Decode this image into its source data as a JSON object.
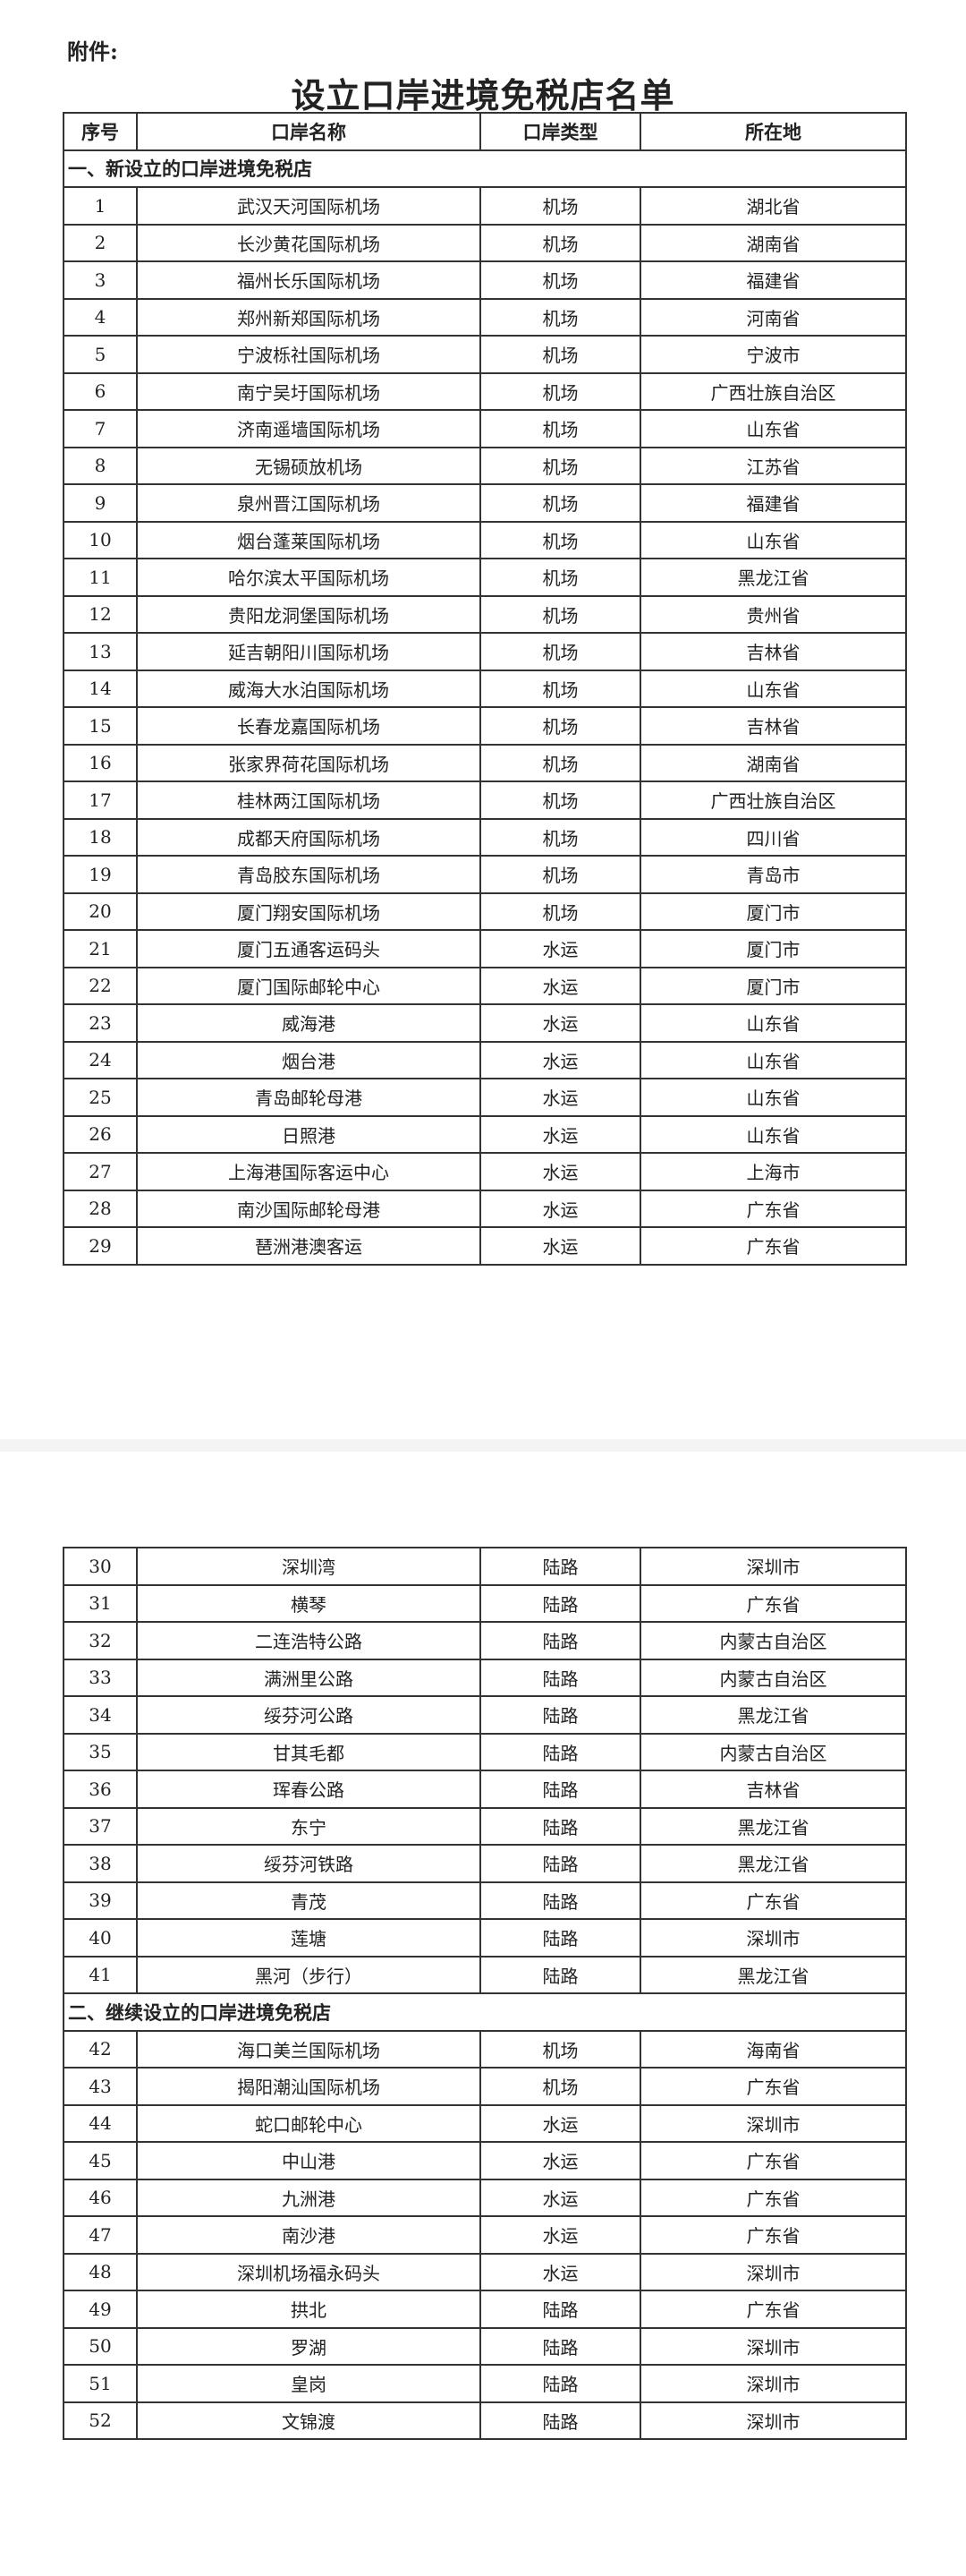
{
  "attachment_label": "附件:",
  "title": "设立口岸进境免税店名单",
  "headers": [
    "序号",
    "口岸名称",
    "口岸类型",
    "所在地"
  ],
  "sections": [
    {
      "label": "一、新设立的口岸进境免税店",
      "rows": [
        [
          "1",
          "武汉天河国际机场",
          "机场",
          "湖北省"
        ],
        [
          "2",
          "长沙黄花国际机场",
          "机场",
          "湖南省"
        ],
        [
          "3",
          "福州长乐国际机场",
          "机场",
          "福建省"
        ],
        [
          "4",
          "郑州新郑国际机场",
          "机场",
          "河南省"
        ],
        [
          "5",
          "宁波栎社国际机场",
          "机场",
          "宁波市"
        ],
        [
          "6",
          "南宁吴圩国际机场",
          "机场",
          "广西壮族自治区"
        ],
        [
          "7",
          "济南遥墙国际机场",
          "机场",
          "山东省"
        ],
        [
          "8",
          "无锡硕放机场",
          "机场",
          "江苏省"
        ],
        [
          "9",
          "泉州晋江国际机场",
          "机场",
          "福建省"
        ],
        [
          "10",
          "烟台蓬莱国际机场",
          "机场",
          "山东省"
        ],
        [
          "11",
          "哈尔滨太平国际机场",
          "机场",
          "黑龙江省"
        ],
        [
          "12",
          "贵阳龙洞堡国际机场",
          "机场",
          "贵州省"
        ],
        [
          "13",
          "延吉朝阳川国际机场",
          "机场",
          "吉林省"
        ],
        [
          "14",
          "威海大水泊国际机场",
          "机场",
          "山东省"
        ],
        [
          "15",
          "长春龙嘉国际机场",
          "机场",
          "吉林省"
        ],
        [
          "16",
          "张家界荷花国际机场",
          "机场",
          "湖南省"
        ],
        [
          "17",
          "桂林两江国际机场",
          "机场",
          "广西壮族自治区"
        ],
        [
          "18",
          "成都天府国际机场",
          "机场",
          "四川省"
        ],
        [
          "19",
          "青岛胶东国际机场",
          "机场",
          "青岛市"
        ],
        [
          "20",
          "厦门翔安国际机场",
          "机场",
          "厦门市"
        ],
        [
          "21",
          "厦门五通客运码头",
          "水运",
          "厦门市"
        ],
        [
          "22",
          "厦门国际邮轮中心",
          "水运",
          "厦门市"
        ],
        [
          "23",
          "威海港",
          "水运",
          "山东省"
        ],
        [
          "24",
          "烟台港",
          "水运",
          "山东省"
        ],
        [
          "25",
          "青岛邮轮母港",
          "水运",
          "山东省"
        ],
        [
          "26",
          "日照港",
          "水运",
          "山东省"
        ],
        [
          "27",
          "上海港国际客运中心",
          "水运",
          "上海市"
        ],
        [
          "28",
          "南沙国际邮轮母港",
          "水运",
          "广东省"
        ],
        [
          "29",
          "琶洲港澳客运",
          "水运",
          "广东省"
        ],
        [
          "30",
          "深圳湾",
          "陆路",
          "深圳市"
        ],
        [
          "31",
          "横琴",
          "陆路",
          "广东省"
        ],
        [
          "32",
          "二连浩特公路",
          "陆路",
          "内蒙古自治区"
        ],
        [
          "33",
          "满洲里公路",
          "陆路",
          "内蒙古自治区"
        ],
        [
          "34",
          "绥芬河公路",
          "陆路",
          "黑龙江省"
        ],
        [
          "35",
          "甘其毛都",
          "陆路",
          "内蒙古自治区"
        ],
        [
          "36",
          "珲春公路",
          "陆路",
          "吉林省"
        ],
        [
          "37",
          "东宁",
          "陆路",
          "黑龙江省"
        ],
        [
          "38",
          "绥芬河铁路",
          "陆路",
          "黑龙江省"
        ],
        [
          "39",
          "青茂",
          "陆路",
          "广东省"
        ],
        [
          "40",
          "莲塘",
          "陆路",
          "深圳市"
        ],
        [
          "41",
          "黑河（步行）",
          "陆路",
          "黑龙江省"
        ]
      ]
    },
    {
      "label": "二、继续设立的口岸进境免税店",
      "rows": [
        [
          "42",
          "海口美兰国际机场",
          "机场",
          "海南省"
        ],
        [
          "43",
          "揭阳潮汕国际机场",
          "机场",
          "广东省"
        ],
        [
          "44",
          "蛇口邮轮中心",
          "水运",
          "深圳市"
        ],
        [
          "45",
          "中山港",
          "水运",
          "广东省"
        ],
        [
          "46",
          "九洲港",
          "水运",
          "广东省"
        ],
        [
          "47",
          "南沙港",
          "水运",
          "广东省"
        ],
        [
          "48",
          "深圳机场福永码头",
          "水运",
          "深圳市"
        ],
        [
          "49",
          "拱北",
          "陆路",
          "广东省"
        ],
        [
          "50",
          "罗湖",
          "陆路",
          "深圳市"
        ],
        [
          "51",
          "皇岗",
          "陆路",
          "深圳市"
        ],
        [
          "52",
          "文锦渡",
          "陆路",
          "深圳市"
        ]
      ]
    }
  ]
}
